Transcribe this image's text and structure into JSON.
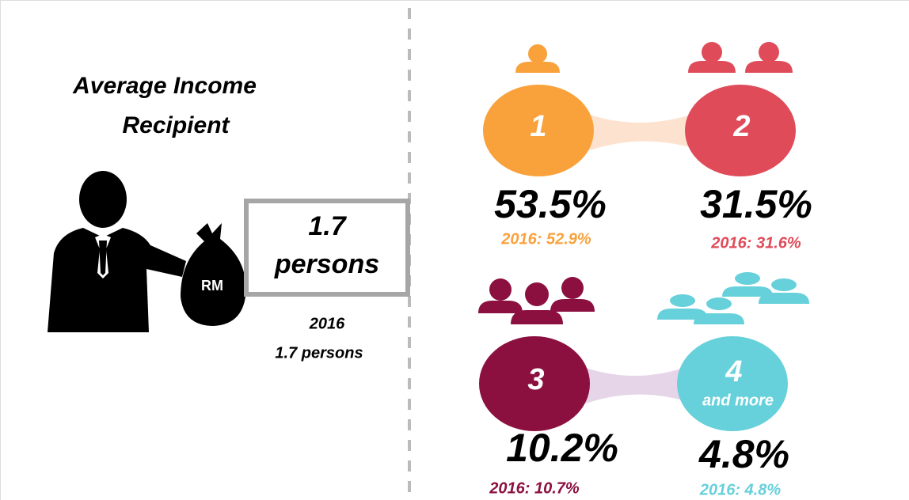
{
  "left": {
    "title_lines": [
      "Average Income",
      "Recipient"
    ],
    "bag_label": "RM",
    "box_lines": [
      "1.7",
      "persons"
    ],
    "previous_lines": [
      "2016",
      "1.7 persons"
    ]
  },
  "groups": [
    {
      "number": "1",
      "share": "53.5%",
      "previous": "2016: 52.9%"
    },
    {
      "number": "2",
      "share": "31.5%",
      "previous": "2016: 31.6%"
    },
    {
      "number": "3",
      "share": "10.2%",
      "previous": "2016: 10.7%"
    },
    {
      "number": "4",
      "sub": "and more",
      "share": "4.8%",
      "previous": "2016: 4.8%"
    }
  ]
}
